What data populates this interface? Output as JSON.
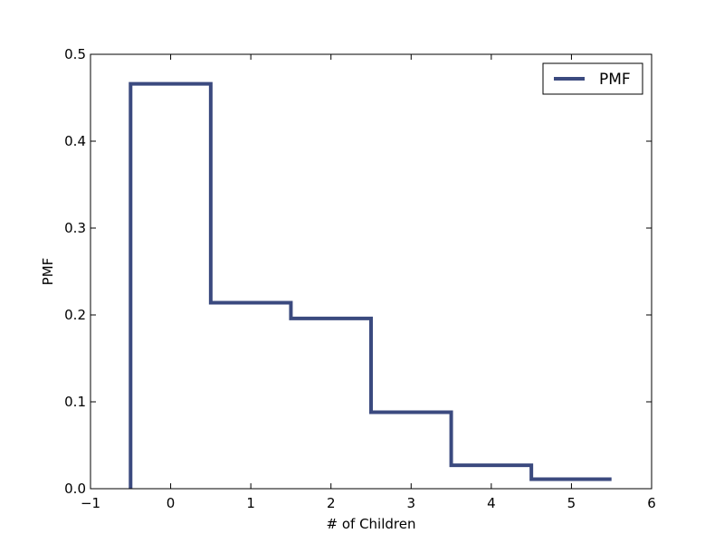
{
  "chart_data": {
    "type": "line",
    "style": "step",
    "title": "",
    "xlabel": "# of Children",
    "ylabel": "PMF",
    "xlim": [
      -1,
      6
    ],
    "ylim": [
      0,
      0.5
    ],
    "xticks": [
      -1,
      0,
      1,
      2,
      3,
      4,
      5,
      6
    ],
    "yticks": [
      0.0,
      0.1,
      0.2,
      0.3,
      0.4,
      0.5
    ],
    "xtick_labels": [
      "−1",
      "0",
      "1",
      "2",
      "3",
      "4",
      "5",
      "6"
    ],
    "ytick_labels": [
      "0.0",
      "0.1",
      "0.2",
      "0.3",
      "0.4",
      "0.5"
    ],
    "grid": false,
    "legend_position": "top-right",
    "series": [
      {
        "name": "PMF",
        "color": "#3b4a7f",
        "x": [
          0,
          1,
          2,
          3,
          4,
          5
        ],
        "values": [
          0.466,
          0.214,
          0.196,
          0.088,
          0.027,
          0.011
        ]
      }
    ]
  }
}
